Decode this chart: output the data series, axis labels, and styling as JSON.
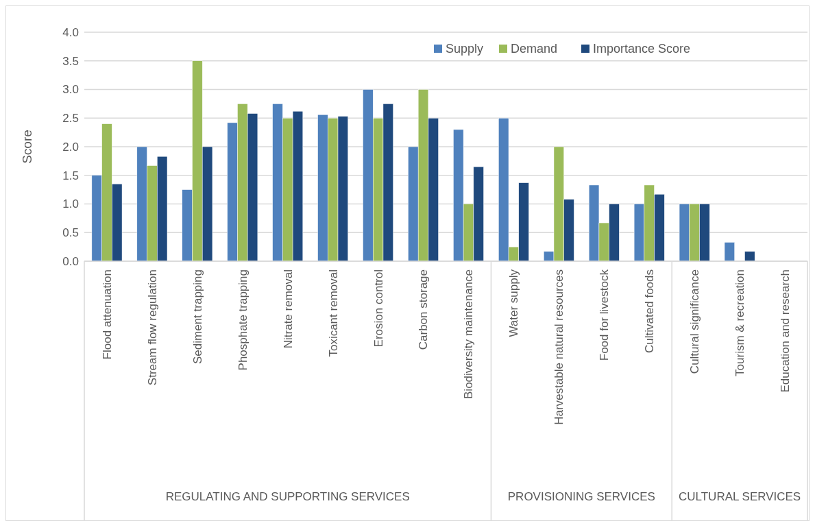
{
  "chart_data": {
    "type": "bar",
    "ylabel": "Score",
    "categories": [
      "Flood attenuation",
      "Stream flow regulation",
      "Sediment trapping",
      "Phosphate trapping",
      "Nitrate removal",
      "Toxicant removal",
      "Erosion control",
      "Carbon storage",
      "Biodiversity maintenance",
      "Water supply",
      "Harvestable natural resources",
      "Food for livestock",
      "Cultivated foods",
      "Cultural significance",
      "Tourism & recreation",
      "Education and research"
    ],
    "series": [
      {
        "name": "Supply",
        "color": "#4f81bd",
        "values": [
          1.5,
          2.0,
          1.25,
          2.42,
          2.75,
          2.56,
          3.0,
          2.0,
          2.3,
          2.5,
          0.17,
          1.33,
          1.0,
          1.0,
          0.33,
          0
        ]
      },
      {
        "name": "Demand",
        "color": "#9bbb59",
        "values": [
          2.4,
          1.67,
          3.5,
          2.75,
          2.5,
          2.5,
          2.5,
          3.0,
          1.0,
          0.25,
          2.0,
          0.67,
          1.33,
          1.0,
          0,
          0
        ]
      },
      {
        "name": "Importance Score",
        "color": "#1f497d",
        "values": [
          1.35,
          1.83,
          2.0,
          2.58,
          2.62,
          2.53,
          2.75,
          2.5,
          1.65,
          1.37,
          1.08,
          1.0,
          1.17,
          1.0,
          0.17,
          0
        ]
      }
    ],
    "ylim": [
      0,
      4
    ],
    "yticks": [
      {
        "value": 0,
        "label": "0.0"
      },
      {
        "value": 0.5,
        "label": "0.5"
      },
      {
        "value": 1,
        "label": "1.0"
      },
      {
        "value": 1.5,
        "label": "1.5"
      },
      {
        "value": 2,
        "label": "2.0"
      },
      {
        "value": 2.5,
        "label": "2.5"
      },
      {
        "value": 3,
        "label": "3.0"
      },
      {
        "value": 3.5,
        "label": "3.5"
      },
      {
        "value": 4,
        "label": "4.0"
      }
    ],
    "grid": "y",
    "legend": "top right",
    "annotations": [
      "REGULATING AND SUPPORTING SERVICES",
      "PROVISIONING SERVICES",
      "CULTURAL SERVICES"
    ]
  }
}
